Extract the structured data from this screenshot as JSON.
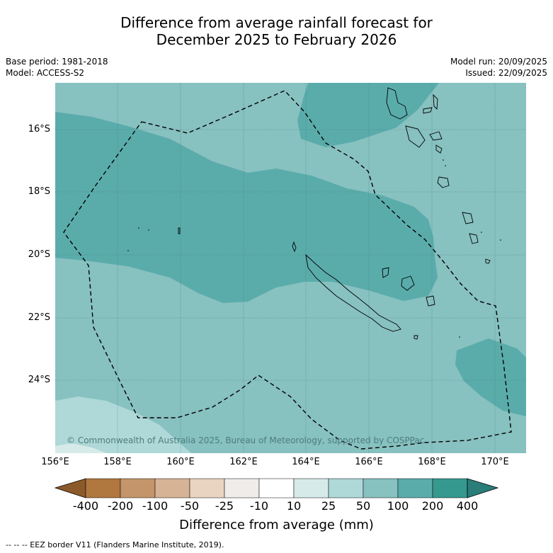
{
  "title_line1": "Difference from average rainfall forecast for",
  "title_line2": "December 2025 to February 2026",
  "base_period": "Base period: 1981-2018",
  "model": "Model: ACCESS-S2",
  "model_run": "Model run: 20/09/2025",
  "issued": "Issued: 22/09/2025",
  "latitude_labels": [
    "16°S",
    "18°S",
    "20°S",
    "22°S",
    "24°S"
  ],
  "longitude_labels": [
    "156°E",
    "158°E",
    "160°E",
    "162°E",
    "164°E",
    "166°E",
    "168°E",
    "170°E"
  ],
  "copyright": "© Commonwealth of Australia 2025, Bureau of Meteorology, supported by COSPPac",
  "colorbar": {
    "title": "Difference from average (mm)",
    "labels": [
      "-400",
      "-200",
      "-100",
      "-50",
      "-25",
      "-10",
      "10",
      "25",
      "50",
      "100",
      "200",
      "400"
    ],
    "colors": [
      "#8c5a2a",
      "#b0773f",
      "#c4956a",
      "#d6b394",
      "#e8d4c0",
      "#f0ecea",
      "#ffffff",
      "#d6ebe9",
      "#afd8d8",
      "#87c1c0",
      "#5aacab",
      "#35998f",
      "#2a7d78"
    ]
  },
  "footnote": "--  --  -- EEZ border V11 (Flanders Marine Institute, 2019).",
  "colors": {
    "band_50_100": "#87c1c0",
    "band_100_200": "#5aacab",
    "band_25_50": "#afd8d8",
    "gridline": "#3d6b6b"
  }
}
